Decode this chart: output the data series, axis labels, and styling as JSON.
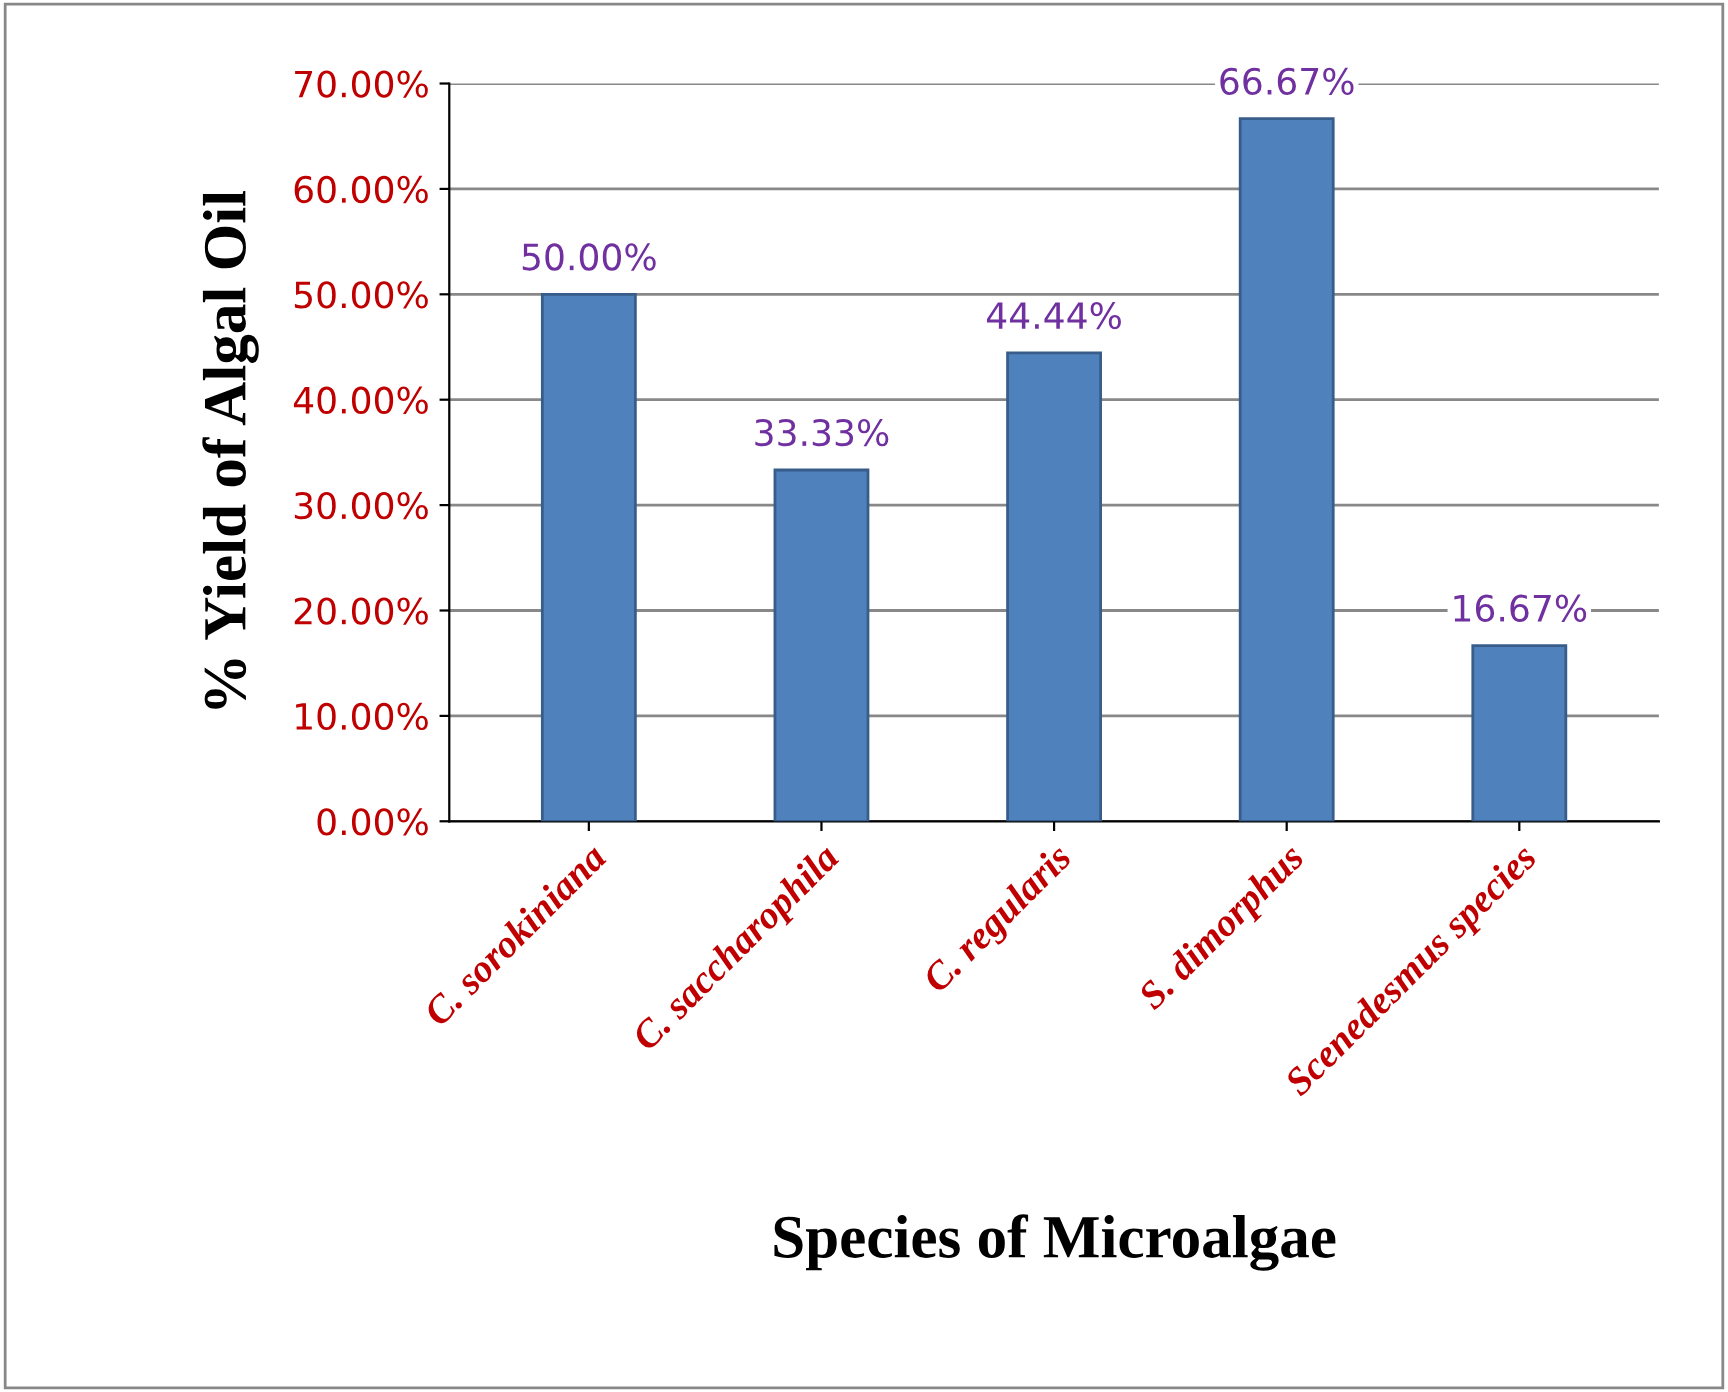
{
  "chart_data": {
    "type": "bar",
    "xlabel": "Species of Microalgae",
    "ylabel": "% Yield of Algal Oil",
    "categories": [
      "C. sorokiniana",
      "C. saccharophila",
      "C. regularis",
      "S. dimorphus",
      "Scenedesmus species"
    ],
    "values": [
      50.0,
      33.33,
      44.44,
      66.67,
      16.67
    ],
    "value_labels": [
      "50.00%",
      "33.33%",
      "44.44%",
      "66.67%",
      "16.67%"
    ],
    "color": "#4f81bd",
    "ylim": [
      0,
      70
    ],
    "yticks": [
      {
        "value": 0,
        "label": "0.00%"
      },
      {
        "value": 10,
        "label": "10.00%"
      },
      {
        "value": 20,
        "label": "20.00%"
      },
      {
        "value": 30,
        "label": "30.00%"
      },
      {
        "value": 40,
        "label": "40.00%"
      },
      {
        "value": 50,
        "label": "50.00%"
      },
      {
        "value": 60,
        "label": "60.00%"
      },
      {
        "value": 70,
        "label": "70.00%"
      }
    ],
    "grid": "y",
    "legend": false
  }
}
